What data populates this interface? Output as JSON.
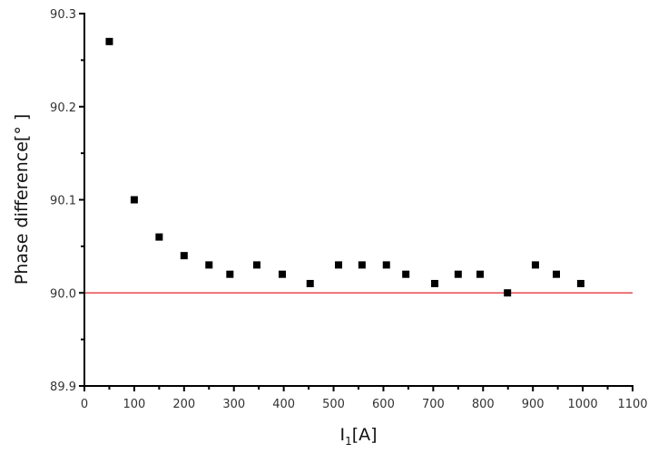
{
  "chart_data": {
    "type": "scatter",
    "title": "",
    "xlabel": "I1[A]",
    "xlabel_main": "I",
    "xlabel_sub": "1",
    "xlabel_unit": "[A]",
    "ylabel": "Phase difference[° ]",
    "xlim": [
      0,
      1100
    ],
    "ylim": [
      89.9,
      90.3
    ],
    "xticks": [
      0,
      100,
      200,
      300,
      400,
      500,
      600,
      700,
      800,
      900,
      1000,
      1100
    ],
    "yticks": [
      89.9,
      90.0,
      90.1,
      90.2,
      90.3
    ],
    "ytick_labels": [
      "89.9",
      "90.0",
      "90.1",
      "90.2",
      "90.3"
    ],
    "grid": false,
    "legend": null,
    "series": [
      {
        "name": "Phase difference",
        "marker": "square",
        "color": "#000000",
        "x": [
          50,
          100,
          150,
          200,
          250,
          292,
          346,
          397,
          453,
          510,
          557,
          606,
          645,
          703,
          750,
          794,
          849,
          905,
          947,
          996
        ],
        "y": [
          90.27,
          90.1,
          90.06,
          90.04,
          90.03,
          90.02,
          90.03,
          90.02,
          90.01,
          90.03,
          90.03,
          90.03,
          90.02,
          90.01,
          90.02,
          90.02,
          90.0,
          90.03,
          90.02,
          90.01
        ]
      }
    ],
    "reference_line": {
      "y": 90.0,
      "color": "#e0262a",
      "x_range": [
        0,
        1100
      ]
    }
  }
}
